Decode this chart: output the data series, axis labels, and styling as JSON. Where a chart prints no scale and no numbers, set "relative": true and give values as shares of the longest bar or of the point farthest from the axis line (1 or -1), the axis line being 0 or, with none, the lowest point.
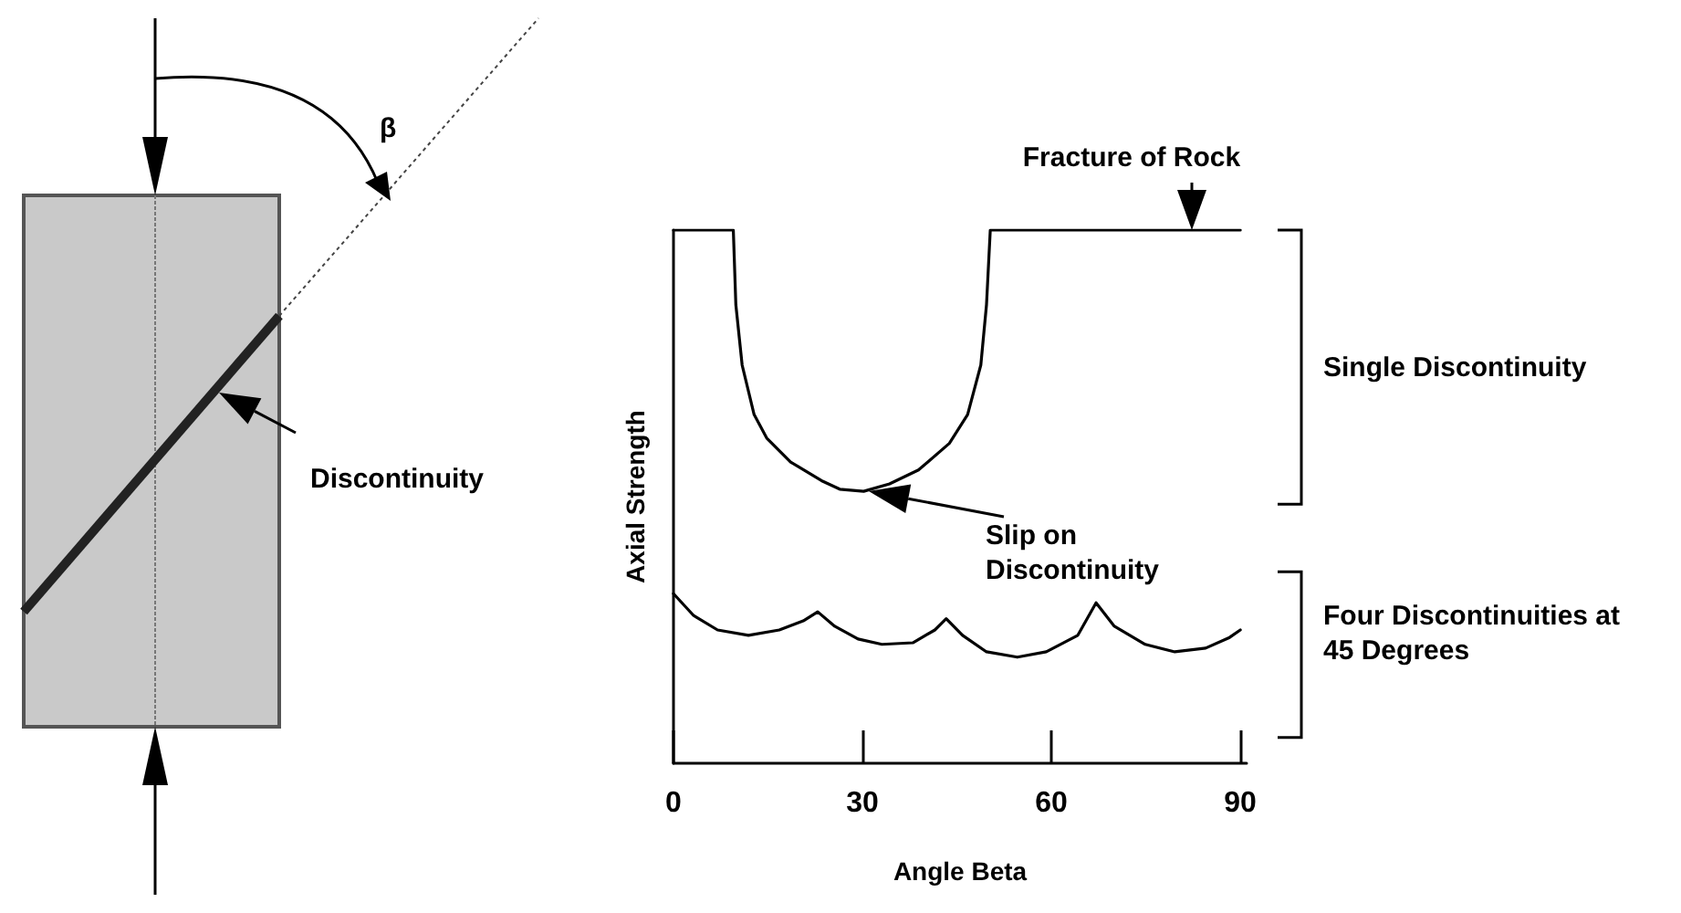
{
  "chart_data": {
    "type": "line",
    "relative": true,
    "xlabel": "Angle Beta",
    "ylabel": "Axial Strength",
    "xlim": [
      0,
      91
    ],
    "xticks": [
      0,
      30,
      60,
      90
    ],
    "marker": "none",
    "line_style": "solid",
    "series": [
      {
        "name": "Single Discontinuity",
        "color": "#000000",
        "x": [
          0,
          9.5,
          9.9,
          10.9,
          12.8,
          14.8,
          18.6,
          23.5,
          26.4,
          30.2,
          34.3,
          38.9,
          43.8,
          46.7,
          48.8,
          49.7,
          50.3,
          90
        ],
        "values": [
          1,
          1,
          0.86,
          0.747,
          0.654,
          0.61,
          0.565,
          0.53,
          0.514,
          0.51,
          0.524,
          0.55,
          0.6,
          0.654,
          0.747,
          0.86,
          1,
          1
        ]
      },
      {
        "name": "Four Discontinuities at 45 Degrees",
        "color": "#000000",
        "x": [
          0,
          3.2,
          7,
          11.9,
          16.8,
          20.6,
          22.9,
          25.6,
          29.3,
          33.1,
          38,
          41.5,
          43.3,
          45.9,
          49.7,
          54.6,
          59.2,
          64.2,
          67.1,
          70,
          74.9,
          79.6,
          84.5,
          88.3,
          90
        ],
        "values": [
          0.318,
          0.277,
          0.25,
          0.24,
          0.25,
          0.267,
          0.284,
          0.257,
          0.233,
          0.223,
          0.226,
          0.25,
          0.271,
          0.24,
          0.209,
          0.199,
          0.209,
          0.24,
          0.301,
          0.257,
          0.223,
          0.209,
          0.216,
          0.236,
          0.25
        ]
      }
    ],
    "annotations": [
      "Fracture of Rock",
      "Slip on Discontinuity",
      "Discontinuity",
      "β"
    ]
  }
}
